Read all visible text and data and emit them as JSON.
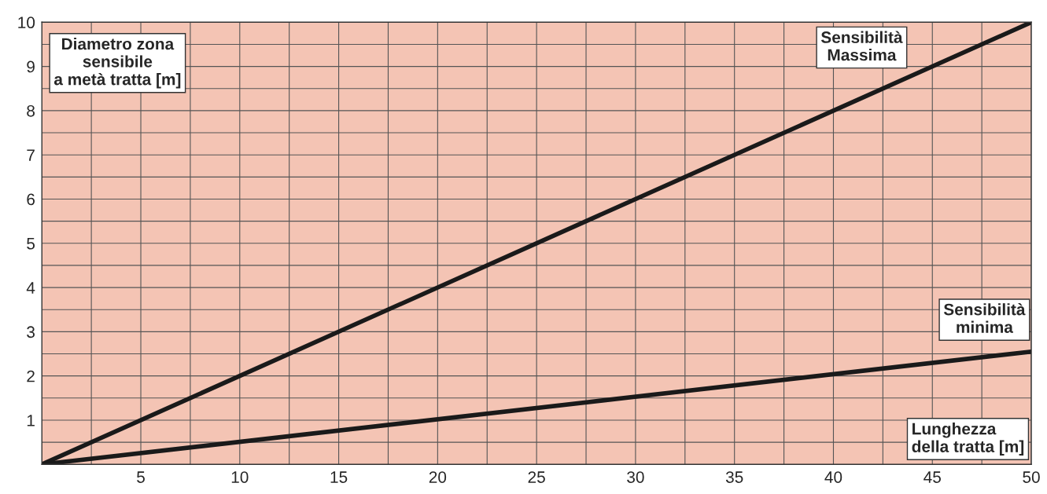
{
  "chart_data": {
    "type": "line",
    "xlabel": "Lunghezza\ndella tratta [m]",
    "ylabel": "Diametro zona\nsensibile\na metà tratta [m]",
    "x": [
      0,
      50
    ],
    "series": [
      {
        "name": "Sensibilità\nMassima",
        "color": "#1a1a1a",
        "values": [
          0,
          10
        ]
      },
      {
        "name": "Sensibilità\nminima",
        "color": "#1a1a1a",
        "values": [
          0,
          2.55
        ]
      }
    ],
    "xlim": [
      0,
      50
    ],
    "ylim": [
      0,
      10
    ],
    "xticks": [
      {
        "value": 2.5,
        "label": null
      },
      5,
      {
        "value": 7.5,
        "label": null
      },
      10,
      {
        "value": 12.5,
        "label": null
      },
      15,
      {
        "value": 17.5,
        "label": null
      },
      20,
      {
        "value": 22.5,
        "label": null
      },
      25,
      {
        "value": 27.5,
        "label": null
      },
      30,
      {
        "value": 32.5,
        "label": null
      },
      35,
      {
        "value": 37.5,
        "label": null
      },
      40,
      {
        "value": 42.5,
        "label": null
      },
      45,
      {
        "value": 47.5,
        "label": null
      },
      50
    ],
    "yticks": [
      {
        "value": 0.5,
        "label": null
      },
      1,
      {
        "value": 1.5,
        "label": null
      },
      2,
      {
        "value": 2.5,
        "label": null
      },
      3,
      {
        "value": 3.5,
        "label": null
      },
      4,
      {
        "value": 4.5,
        "label": null
      },
      5,
      {
        "value": 5.5,
        "label": null
      },
      6,
      {
        "value": 6.5,
        "label": null
      },
      7,
      {
        "value": 7.5,
        "label": null
      },
      8,
      {
        "value": 8.5,
        "label": null
      },
      9,
      {
        "value": 9.5,
        "label": null
      },
      10
    ],
    "grid": true,
    "legend": false,
    "marker": "none",
    "line_style": "solid"
  }
}
